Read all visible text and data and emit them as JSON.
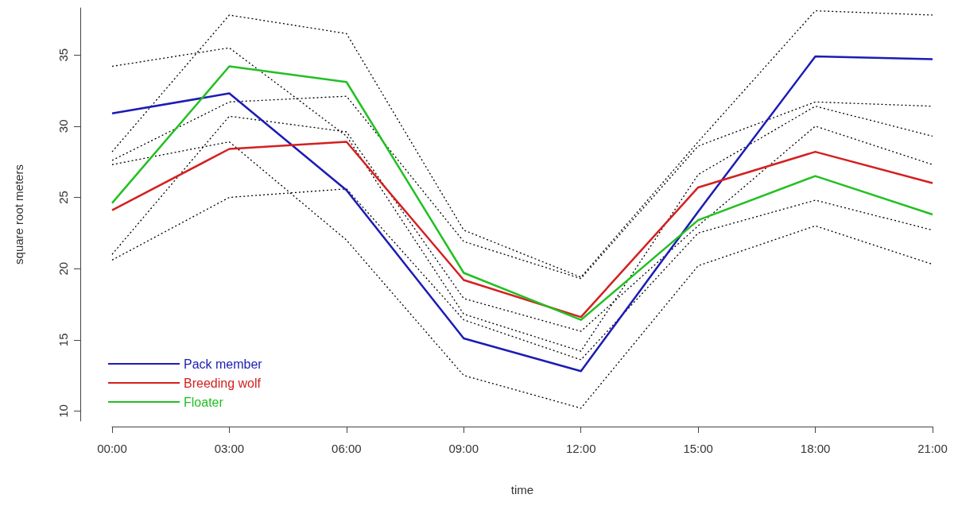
{
  "chart_data": {
    "type": "line",
    "xlabel": "time",
    "ylabel": "square root meters",
    "categories": [
      "00:00",
      "03:00",
      "06:00",
      "09:00",
      "12:00",
      "15:00",
      "18:00",
      "21:00"
    ],
    "ylim": [
      9.3,
      38.3
    ],
    "yticks": [
      10,
      15,
      20,
      25,
      30,
      35
    ],
    "grid": false,
    "legend": "bottom left",
    "marker": "none",
    "series": [
      {
        "color": "#000000",
        "line_style": "dotted",
        "values": [
          34.2,
          35.5,
          29.3,
          16.8,
          14.2,
          26.6,
          31.4,
          29.3
        ]
      },
      {
        "color": "#000000",
        "line_style": "dotted",
        "values": [
          28.2,
          37.8,
          36.5,
          22.7,
          19.4,
          28.9,
          38.1,
          37.8
        ]
      },
      {
        "color": "#000000",
        "line_style": "dotted",
        "values": [
          27.6,
          31.7,
          32.1,
          21.9,
          19.3,
          28.6,
          31.7,
          31.4
        ]
      },
      {
        "color": "#000000",
        "line_style": "dotted",
        "values": [
          21.0,
          30.7,
          29.6,
          17.9,
          15.6,
          23.0,
          30.0,
          27.3
        ]
      },
      {
        "color": "#000000",
        "line_style": "dotted",
        "values": [
          27.3,
          28.9,
          22.0,
          12.5,
          10.2,
          20.2,
          23.0,
          20.3
        ]
      },
      {
        "color": "#000000",
        "line_style": "dotted",
        "values": [
          20.6,
          25.0,
          25.6,
          16.4,
          13.6,
          22.5,
          24.8,
          22.7
        ]
      },
      {
        "name": "Pack member",
        "color": "#1c1cb4",
        "line_style": "solid",
        "values": [
          30.9,
          32.3,
          25.5,
          15.1,
          12.8,
          24.0,
          34.9,
          34.7
        ]
      },
      {
        "name": "Breeding wolf",
        "color": "#d42020",
        "line_style": "solid",
        "values": [
          24.1,
          28.4,
          28.9,
          19.2,
          16.6,
          25.7,
          28.2,
          26.0
        ]
      },
      {
        "name": "Floater",
        "color": "#22c022",
        "line_style": "solid",
        "values": [
          24.6,
          34.2,
          33.1,
          19.7,
          16.4,
          23.4,
          26.5,
          23.8
        ]
      }
    ]
  }
}
